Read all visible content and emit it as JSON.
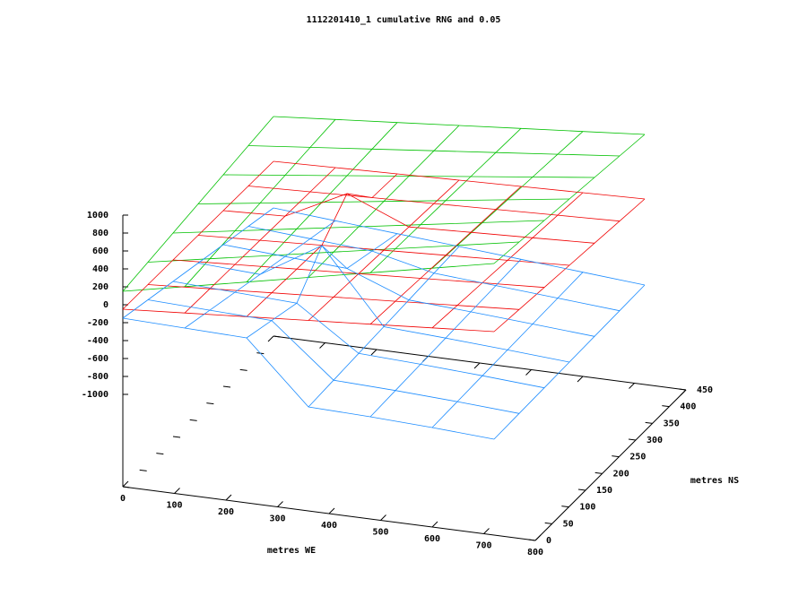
{
  "chart_data": {
    "type": "surface",
    "title": "1112201410_1 cumulative RNG and 0.05",
    "x_label": "metres WE",
    "y_label": "metres NS",
    "x": [
      0,
      120,
      240,
      360,
      480,
      600,
      720
    ],
    "y": [
      0,
      75,
      150,
      225,
      300,
      375,
      450
    ],
    "xlim": [
      0,
      800
    ],
    "ylim": [
      0,
      450
    ],
    "zlim": [
      -1000,
      1000
    ],
    "xticks": [
      0,
      100,
      200,
      300,
      400,
      500,
      600,
      700,
      800
    ],
    "yticks": [
      0,
      50,
      100,
      150,
      200,
      250,
      300,
      350,
      400,
      450
    ],
    "zticks": [
      -1000,
      -800,
      -600,
      -400,
      -200,
      0,
      200,
      400,
      600,
      800,
      1000
    ],
    "series": [
      {
        "color": "#00c000",
        "values": [
          [
            150,
            292,
            433,
            575,
            717,
            858,
            1000
          ],
          [
            195,
            323,
            450,
            578,
            705,
            832,
            960
          ],
          [
            240,
            354,
            467,
            580,
            693,
            806,
            920
          ],
          [
            285,
            384,
            483,
            583,
            682,
            781,
            880
          ],
          [
            330,
            415,
            500,
            585,
            670,
            755,
            840
          ],
          [
            375,
            446,
            517,
            588,
            658,
            729,
            800
          ],
          [
            420,
            477,
            533,
            590,
            647,
            703,
            760
          ]
        ]
      },
      {
        "color": "#f00000",
        "values": [
          [
            -50,
            -2,
            47,
            95,
            143,
            192,
            240
          ],
          [
            -55,
            -12,
            33,
            76,
            119,
            163,
            207
          ],
          [
            -60,
            -21,
            18,
            57,
            95,
            135,
            173
          ],
          [
            -65,
            -31,
            4,
            38,
            72,
            106,
            140
          ],
          [
            -70,
            -41,
            300,
            18,
            48,
            77,
            107
          ],
          [
            -75,
            -50,
            -25,
            -1,
            24,
            49,
            73
          ],
          [
            -80,
            -60,
            -40,
            -20,
            0,
            20,
            40
          ]
        ]
      },
      {
        "color": "#1c8cff",
        "values": [
          [
            -150,
            -170,
            -190,
            -870,
            -890,
            -920,
            -960
          ],
          [
            -225,
            -251,
            -276,
            -852,
            -877,
            -911,
            -953
          ],
          [
            -300,
            -331,
            -362,
            -833,
            -864,
            -902,
            -947
          ],
          [
            -375,
            -412,
            0,
            -815,
            -852,
            -894,
            -940
          ],
          [
            -450,
            -492,
            -535,
            -797,
            -839,
            -885,
            -933
          ],
          [
            -525,
            -573,
            -621,
            -778,
            -826,
            -876,
            -927
          ],
          [
            -600,
            -653,
            -707,
            -760,
            -813,
            -867,
            -920
          ]
        ]
      }
    ]
  }
}
